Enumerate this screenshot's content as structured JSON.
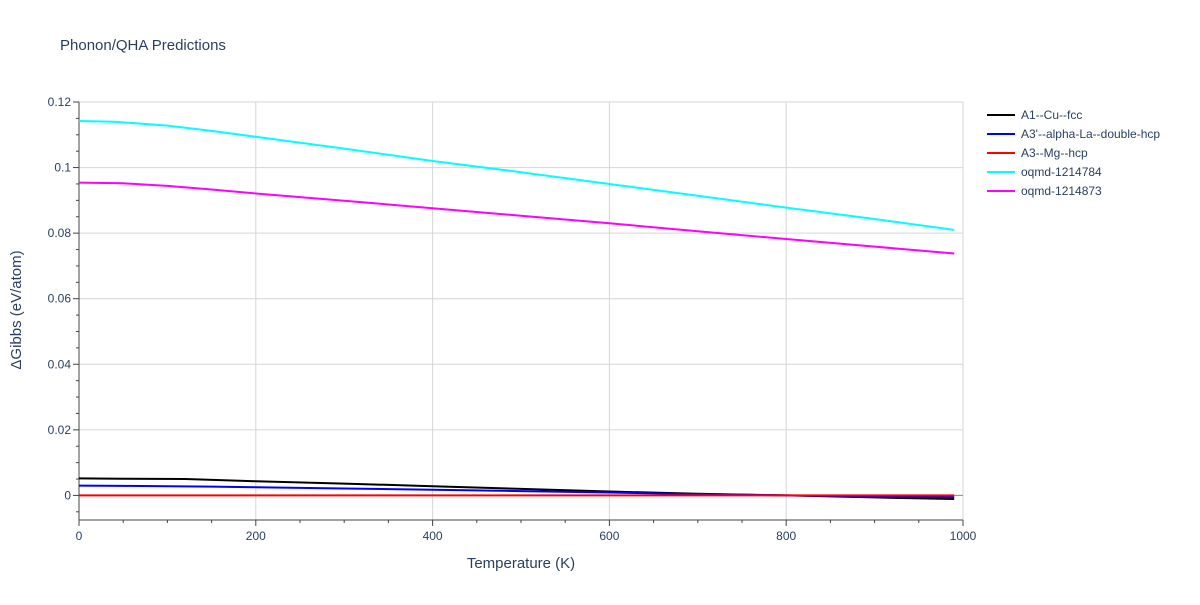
{
  "chart_data": {
    "type": "line",
    "title": "Phonon/QHA Predictions",
    "xlabel": "Temperature (K)",
    "ylabel": "ΔGibbs (eV/atom)",
    "xlim": [
      0,
      1000
    ],
    "ylim": [
      -0.0075,
      0.12
    ],
    "xticks": [
      0,
      200,
      400,
      600,
      800,
      1000
    ],
    "xtick_labels": [
      "0",
      "200",
      "400",
      "600",
      "800",
      "1000"
    ],
    "yticks": [
      0,
      0.02,
      0.04,
      0.06,
      0.08,
      0.1,
      0.12
    ],
    "ytick_labels": [
      "0",
      "0.02",
      "0.04",
      "0.06",
      "0.08",
      "0.1",
      "0.12"
    ],
    "grid": true,
    "legend_position": "top-right",
    "series": [
      {
        "name": "A1--Cu--fcc",
        "color": "#000000",
        "x": [
          0,
          50,
          120,
          200,
          300,
          400,
          500,
          600,
          700,
          800,
          900,
          990
        ],
        "y": [
          0.0052,
          0.0051,
          0.005,
          0.0043,
          0.0036,
          0.0028,
          0.002,
          0.0012,
          0.0005,
          0.0,
          -0.0006,
          -0.0011
        ]
      },
      {
        "name": "A3'--alpha-La--double-hcp",
        "color": "#0000ff",
        "x": [
          0,
          50,
          150,
          200,
          300,
          400,
          500,
          600,
          700,
          800,
          900,
          990
        ],
        "y": [
          0.003,
          0.0029,
          0.0027,
          0.0025,
          0.0021,
          0.0017,
          0.0013,
          0.0009,
          0.0004,
          0.0,
          -0.0003,
          -0.0005
        ]
      },
      {
        "name": "A3--Mg--hcp",
        "color": "#ff0000",
        "x": [
          0,
          990
        ],
        "y": [
          0.0,
          0.0
        ]
      },
      {
        "name": "oqmd-1214784",
        "color": "#00ffff",
        "x": [
          0,
          40,
          100,
          150,
          200,
          300,
          400,
          500,
          600,
          700,
          800,
          900,
          990
        ],
        "y": [
          0.1142,
          0.114,
          0.1128,
          0.1112,
          0.1094,
          0.1058,
          0.102,
          0.0986,
          0.095,
          0.0914,
          0.0878,
          0.0843,
          0.081
        ]
      },
      {
        "name": "oqmd-1214873",
        "color": "#ff00ff",
        "x": [
          0,
          50,
          100,
          150,
          200,
          300,
          400,
          500,
          600,
          700,
          800,
          900,
          990
        ],
        "y": [
          0.0954,
          0.0952,
          0.0944,
          0.0933,
          0.0921,
          0.0899,
          0.0876,
          0.0853,
          0.083,
          0.0806,
          0.0782,
          0.0759,
          0.0738
        ]
      }
    ]
  }
}
